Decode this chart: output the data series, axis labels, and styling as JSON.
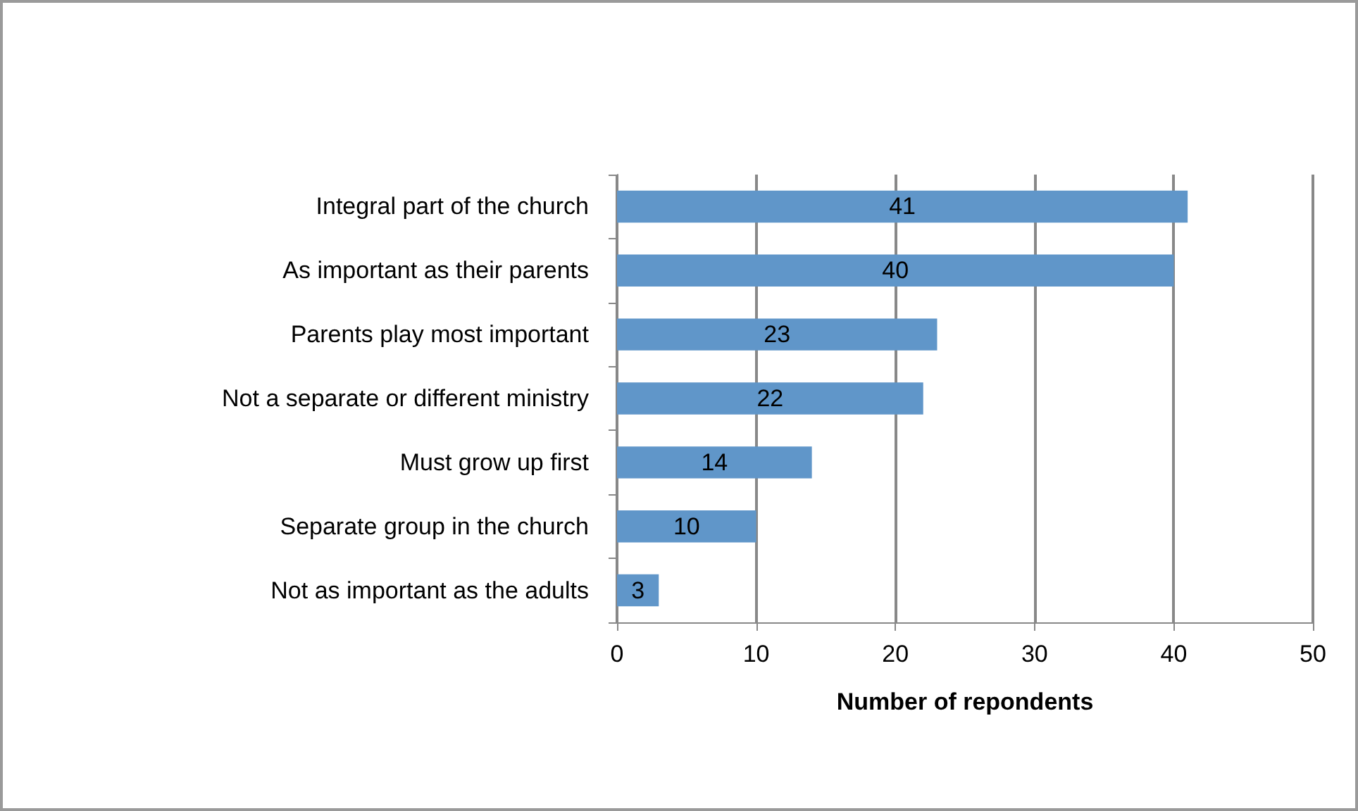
{
  "chart_data": {
    "type": "bar",
    "orientation": "horizontal",
    "xlabel": "Number of repondents",
    "categories": [
      "Integral part of the church",
      "As important as their parents",
      "Parents play most important",
      "Not a separate or different ministry",
      "Must grow up first",
      "Separate group in the church",
      "Not as important as the adults"
    ],
    "values": [
      41,
      40,
      23,
      22,
      14,
      10,
      3
    ],
    "color": "#6096c9",
    "xlim": [
      0,
      50
    ],
    "xticks": [
      0,
      10,
      20,
      30,
      40,
      50
    ],
    "grid": "x",
    "data_labels": true
  }
}
